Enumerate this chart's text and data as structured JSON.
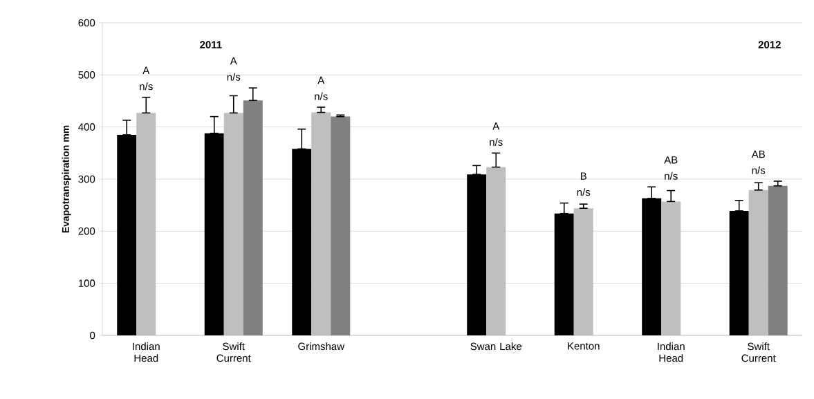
{
  "chart_data": {
    "type": "bar",
    "ylabel": "Evapotranspiration mm",
    "categories": [
      "Indian Head",
      "Swift Current",
      "Grimshaw",
      null,
      "Swan Lake",
      "Kenton",
      "Indian Head",
      "Swift Current"
    ],
    "series": [
      {
        "color": "#000000",
        "values": [
          385,
          388,
          358,
          null,
          309,
          234,
          263,
          239
        ],
        "errors": [
          [
            385,
            413
          ],
          [
            388,
            420
          ],
          [
            358,
            396
          ],
          null,
          [
            309,
            326
          ],
          [
            234,
            254
          ],
          [
            263,
            285
          ],
          [
            239,
            259
          ]
        ]
      },
      {
        "color": "#bfbfbf",
        "values": [
          427,
          427,
          428,
          null,
          323,
          244,
          257,
          279
        ],
        "errors": [
          [
            427,
            457
          ],
          [
            427,
            460
          ],
          [
            428,
            438
          ],
          null,
          [
            323,
            350
          ],
          [
            244,
            252
          ],
          [
            257,
            278
          ],
          [
            279,
            293
          ]
        ]
      },
      {
        "color": "#808080",
        "values": [
          null,
          451,
          420,
          null,
          null,
          null,
          null,
          287
        ],
        "errors": [
          null,
          [
            451,
            475
          ],
          [
            420,
            423
          ],
          null,
          null,
          null,
          null,
          [
            287,
            296
          ]
        ]
      }
    ],
    "ylim": [
      0,
      600
    ],
    "yticks": [
      0,
      100,
      200,
      300,
      400,
      500,
      600
    ],
    "grid": "y",
    "annotations": [
      "2011",
      "2012",
      "A",
      "n/s",
      "A",
      "n/s",
      "A",
      "n/s",
      "A",
      "n/s",
      "B",
      "n/s",
      "AB",
      "n/s",
      "AB",
      "n/s"
    ]
  }
}
